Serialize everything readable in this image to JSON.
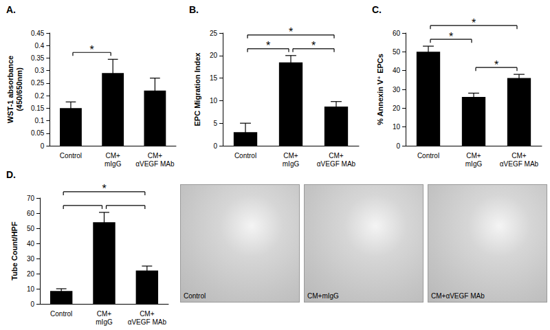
{
  "chart_data": [
    {
      "type": "bar",
      "title": "A.",
      "ylabel": "WST-1 absorbance\n(450/650nm)",
      "categories": [
        "Control",
        "CM+\nmIgG",
        "CM+\nαVEGF MAb"
      ],
      "values": [
        0.15,
        0.29,
        0.22
      ],
      "errors": [
        0.025,
        0.055,
        0.05
      ],
      "color": "#000000",
      "ylim": [
        0,
        0.45
      ],
      "yticks": [
        0,
        0.05,
        0.1,
        0.15,
        0.2,
        0.25,
        0.3,
        0.35,
        0.4,
        0.45
      ],
      "grid": false,
      "annotations": [
        {
          "between": [
            0,
            1
          ],
          "text": "*"
        }
      ]
    },
    {
      "type": "bar",
      "title": "B.",
      "ylabel": "EPC Migration Index",
      "categories": [
        "Control",
        "CM+\nmIgG",
        "CM+\nαVEGF MAb"
      ],
      "values": [
        3,
        18.5,
        8.7
      ],
      "errors": [
        2,
        1.5,
        1.1
      ],
      "color": "#000000",
      "ylim": [
        0,
        25
      ],
      "yticks": [
        0,
        5,
        10,
        15,
        20,
        25
      ],
      "grid": false,
      "annotations": [
        {
          "between": [
            0,
            1
          ],
          "text": "*"
        },
        {
          "between": [
            1,
            2
          ],
          "text": "*"
        },
        {
          "between": [
            0,
            2
          ],
          "text": "*"
        }
      ]
    },
    {
      "type": "bar",
      "title": "C.",
      "ylabel": "% Annexin V⁺ EPCs",
      "categories": [
        "Control",
        "CM+\nmIgG",
        "CM+\nαVEGF MAb"
      ],
      "values": [
        50,
        26,
        36
      ],
      "errors": [
        3,
        2,
        2
      ],
      "color": "#000000",
      "ylim": [
        0,
        60
      ],
      "yticks": [
        0,
        10,
        20,
        30,
        40,
        50,
        60
      ],
      "grid": false,
      "annotations": [
        {
          "between": [
            0,
            1
          ],
          "text": "*"
        },
        {
          "between": [
            1,
            2
          ],
          "text": "*"
        },
        {
          "between": [
            0,
            2
          ],
          "text": "*"
        }
      ]
    },
    {
      "type": "bar",
      "title": "D.",
      "ylabel": "Tube Count/HPF",
      "categories": [
        "Control",
        "CM+\nmIgG",
        "CM+\nαVEGF MAb"
      ],
      "values": [
        8.5,
        54,
        22
      ],
      "errors": [
        1.5,
        6.5,
        3
      ],
      "color": "#000000",
      "ylim": [
        0,
        70
      ],
      "yticks": [
        0,
        10,
        20,
        30,
        40,
        50,
        60,
        70
      ],
      "grid": false,
      "annotations": [
        {
          "between": [
            0,
            1
          ]
        },
        {
          "between": [
            1,
            2
          ]
        },
        {
          "between": [
            0,
            2
          ],
          "text": "*"
        }
      ]
    }
  ],
  "images": [
    {
      "caption": "Control"
    },
    {
      "caption": "CM+mIgG"
    },
    {
      "caption": "CM+αVEGF MAb"
    }
  ]
}
